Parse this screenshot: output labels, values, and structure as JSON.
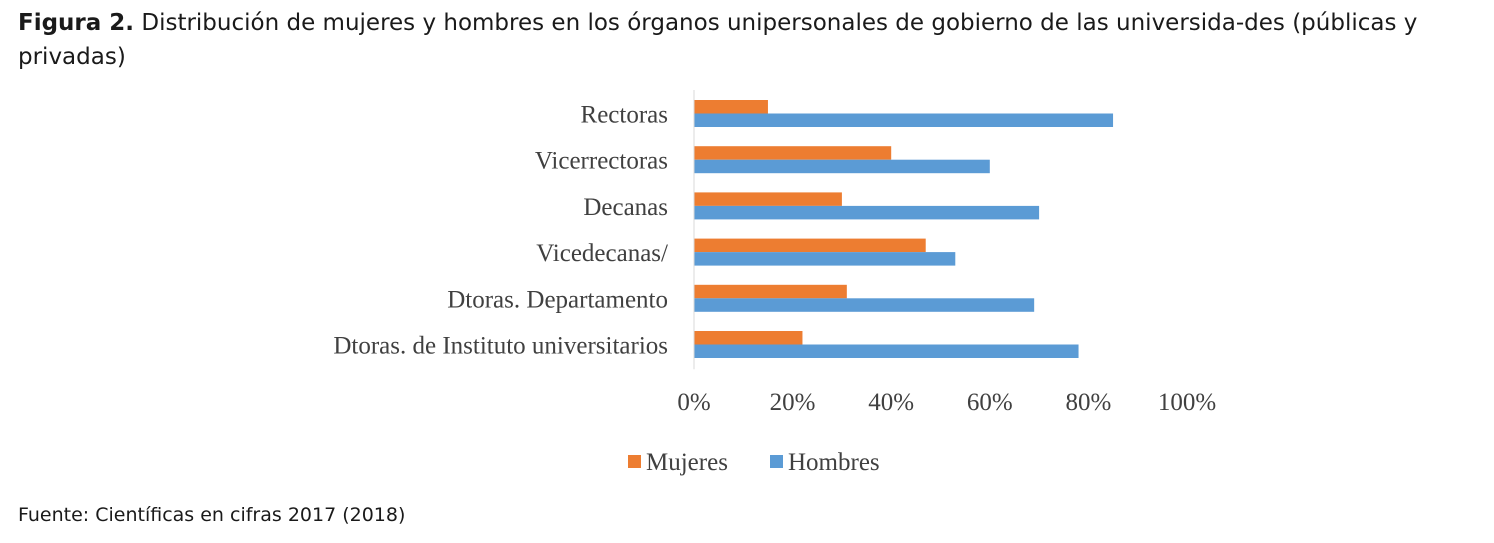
{
  "caption": {
    "label": "Figura 2.",
    "text": "Distribución de mujeres y hombres en los órganos unipersonales de gobierno de las universida-des (públicas y privadas)"
  },
  "source": "Fuente: Científicas en cifras 2017 (2018)",
  "chart_data": {
    "type": "bar",
    "orientation": "horizontal",
    "categories": [
      "Rectoras",
      "Vicerrectoras",
      "Decanas",
      "Vicedecanas/",
      "Dtoras. Departamento",
      "Dtoras. de Instituto universitarios"
    ],
    "series": [
      {
        "name": "Mujeres",
        "color": "#ed7d31",
        "values": [
          15,
          40,
          30,
          47,
          31,
          22
        ]
      },
      {
        "name": "Hombres",
        "color": "#5b9bd5",
        "values": [
          85,
          60,
          70,
          53,
          69,
          78
        ]
      }
    ],
    "x_ticks": [
      "0%",
      "20%",
      "40%",
      "60%",
      "80%",
      "100%"
    ],
    "xlim": [
      0,
      100
    ],
    "unit": "%",
    "grid": false,
    "legend_position": "bottom"
  }
}
